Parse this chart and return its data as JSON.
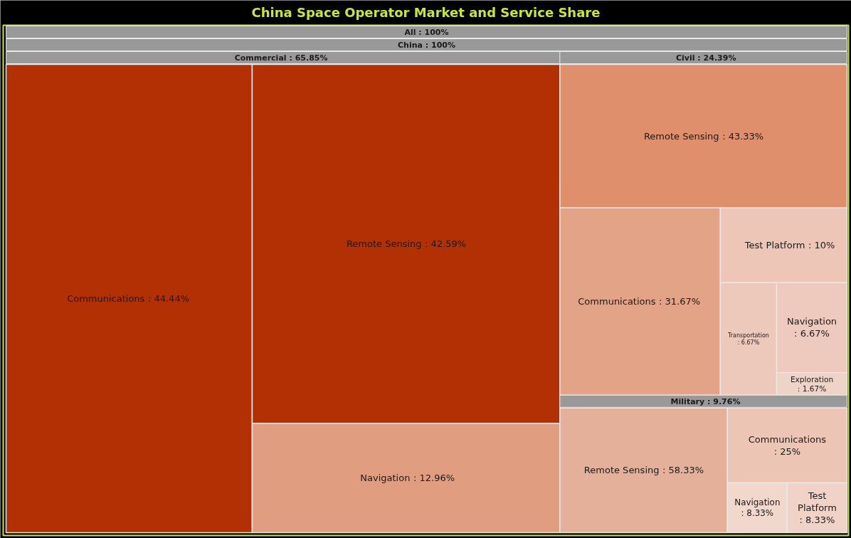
{
  "chart_data": {
    "type": "other",
    "title": "China Space Operator Market and Service Share",
    "annotations": [
      "All : 100%",
      "China : 100%"
    ],
    "categories": [
      "Commercial",
      "Civil",
      "Military",
      "Communications",
      "Remote Sensing",
      "Navigation",
      "Remote Sensing",
      "Communications",
      "Test Platform",
      "Transportation",
      "Navigation",
      "Exploration",
      "Remote Sensing",
      "Communications",
      "Navigation",
      "Test Platform"
    ],
    "series": [
      {
        "values": [
          65.85,
          null,
          null,
          44.44,
          42.59,
          12.96,
          null,
          null,
          null,
          null,
          null,
          null,
          null,
          null,
          null,
          null
        ],
        "value_labels": [
          ": 65.85%",
          null,
          null,
          ": 44.44%",
          ": 42.59%",
          ": 12.96%",
          null,
          null,
          null,
          null,
          null,
          null,
          null,
          null,
          null,
          null
        ],
        "colors": [
          "#999999",
          null,
          null,
          "#b33005",
          "#b33005",
          "#e09d80",
          null,
          null,
          null,
          null,
          null,
          null,
          null,
          null,
          null,
          null
        ]
      },
      {
        "values": [
          null,
          24.39,
          null,
          null,
          null,
          null,
          43.33,
          31.67,
          10,
          6.67,
          6.67,
          1.67,
          null,
          null,
          null,
          null
        ],
        "value_labels": [
          null,
          ": 24.39%",
          null,
          null,
          null,
          null,
          ": 43.33%",
          ": 31.67%",
          ": 10%",
          ": 6.67%",
          ": 6.67%",
          ": 1.67%",
          null,
          null,
          null,
          null
        ],
        "colors": [
          null,
          "#999999",
          null,
          null,
          null,
          null,
          "#df8f6b",
          "#e2a386",
          "#edc6b7",
          "#edc9bb",
          "#edcabd",
          "#f0d3c7",
          null,
          null,
          null,
          null
        ]
      },
      {
        "values": [
          null,
          null,
          9.76,
          null,
          null,
          null,
          null,
          null,
          null,
          null,
          null,
          null,
          58.33,
          25,
          8.33,
          8.33
        ],
        "value_labels": [
          null,
          null,
          ": 9.76%",
          null,
          null,
          null,
          null,
          null,
          null,
          null,
          null,
          null,
          ": 58.33%",
          ": 25%",
          ": 8.33%",
          ": 8.33%"
        ],
        "colors": [
          null,
          null,
          "#999999",
          null,
          null,
          null,
          null,
          null,
          null,
          null,
          null,
          null,
          "#e4b09a",
          "#ecc5b5",
          "#f1d7cc",
          "#f0d2c6"
        ]
      }
    ]
  }
}
